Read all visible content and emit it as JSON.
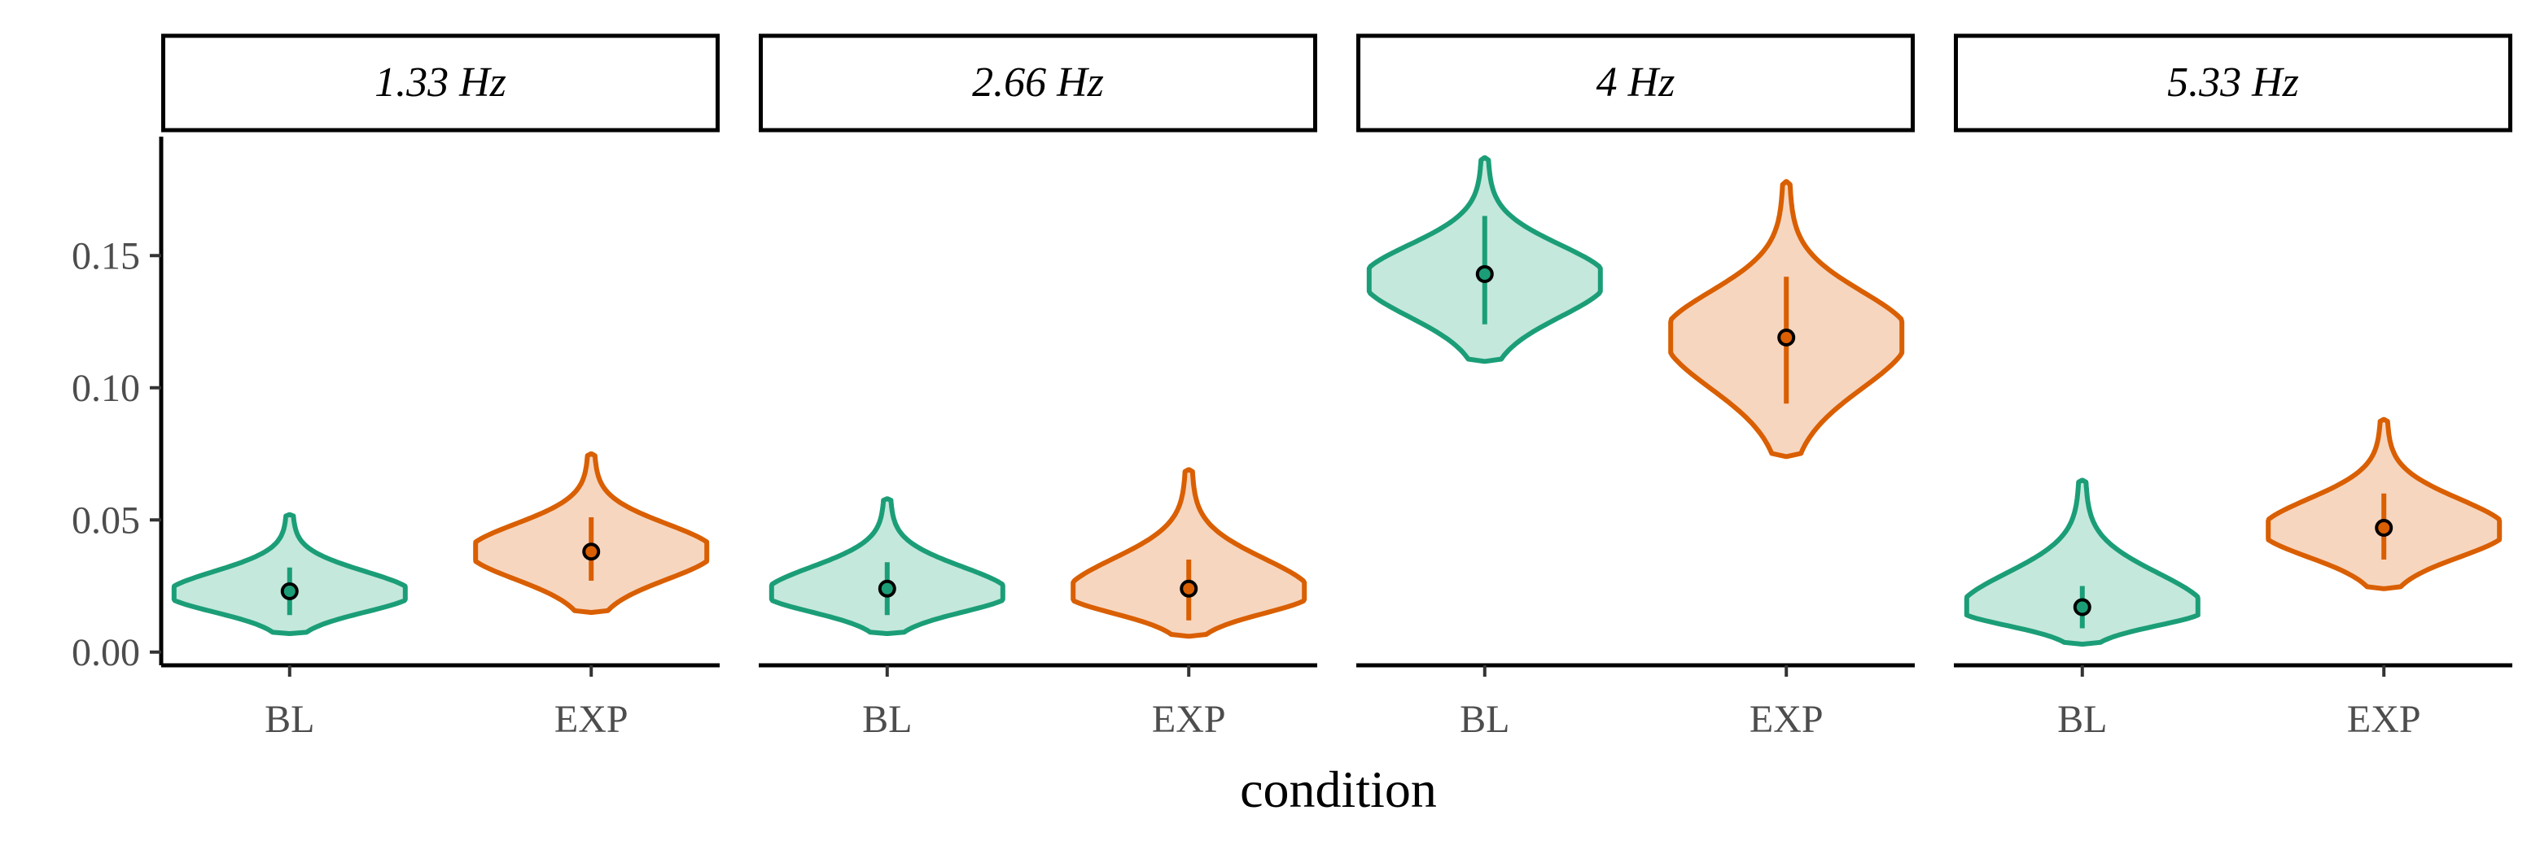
{
  "chart_data": {
    "type": "violin",
    "title": "",
    "xlabel": "condition",
    "ylabel": "",
    "ylim": [
      -0.005,
      0.195
    ],
    "y_ticks": [
      0.0,
      0.05,
      0.1,
      0.15
    ],
    "y_tick_labels": [
      "0.00",
      "0.05",
      "0.10",
      "0.15"
    ],
    "categories": [
      "BL",
      "EXP"
    ],
    "facets": [
      {
        "label": "1.33 Hz",
        "groups": [
          {
            "category": "BL",
            "color": "#1b9e77",
            "fill": "#c5e8dc",
            "min": 0.007,
            "max": 0.052,
            "mean": 0.023,
            "ci": [
              0.014,
              0.032
            ],
            "mode": 0.022
          },
          {
            "category": "EXP",
            "color": "#d95f02",
            "fill": "#f7d6c0",
            "min": 0.015,
            "max": 0.075,
            "mean": 0.038,
            "ci": [
              0.027,
              0.051
            ],
            "mode": 0.038
          }
        ]
      },
      {
        "label": "2.66 Hz",
        "groups": [
          {
            "category": "BL",
            "color": "#1b9e77",
            "fill": "#c5e8dc",
            "min": 0.007,
            "max": 0.058,
            "mean": 0.024,
            "ci": [
              0.014,
              0.034
            ],
            "mode": 0.022
          },
          {
            "category": "EXP",
            "color": "#d95f02",
            "fill": "#f7d6c0",
            "min": 0.006,
            "max": 0.069,
            "mean": 0.024,
            "ci": [
              0.012,
              0.035
            ],
            "mode": 0.022
          }
        ]
      },
      {
        "label": "4 Hz",
        "groups": [
          {
            "category": "BL",
            "color": "#1b9e77",
            "fill": "#c5e8dc",
            "min": 0.11,
            "max": 0.187,
            "mean": 0.143,
            "ci": [
              0.124,
              0.165
            ],
            "mode": 0.141
          },
          {
            "category": "EXP",
            "color": "#d95f02",
            "fill": "#f7d6c0",
            "min": 0.074,
            "max": 0.178,
            "mean": 0.119,
            "ci": [
              0.094,
              0.142
            ],
            "mode": 0.12
          }
        ]
      },
      {
        "label": "5.33 Hz",
        "groups": [
          {
            "category": "BL",
            "color": "#1b9e77",
            "fill": "#c5e8dc",
            "min": 0.003,
            "max": 0.065,
            "mean": 0.017,
            "ci": [
              0.009,
              0.025
            ],
            "mode": 0.016
          },
          {
            "category": "EXP",
            "color": "#d95f02",
            "fill": "#f7d6c0",
            "min": 0.024,
            "max": 0.088,
            "mean": 0.047,
            "ci": [
              0.035,
              0.06
            ],
            "mode": 0.046
          }
        ]
      }
    ]
  }
}
